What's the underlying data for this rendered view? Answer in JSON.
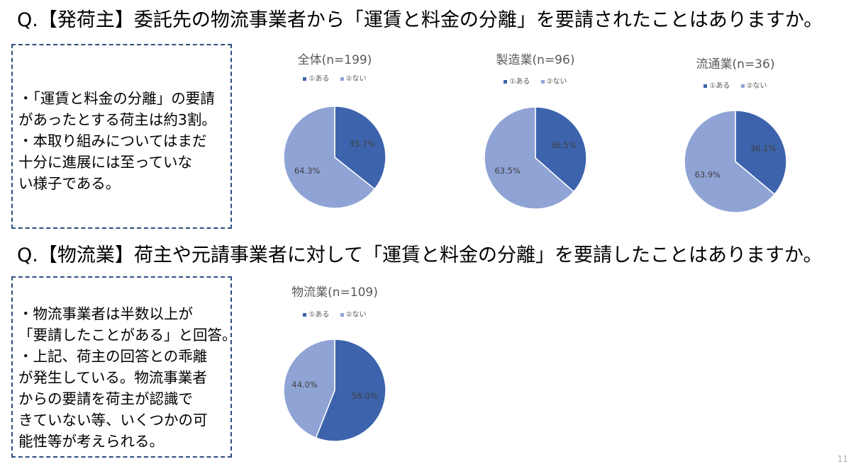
{
  "questions": [
    {
      "title": "Q.【発荷主】委託先の物流事業者から「運賃と料金の分離」を要請されたことはありますか。",
      "note_lines": [
        "・「運賃と料金の分離」の要請",
        "があったとする荷主は約3割。",
        "・本取り組みについてはまだ",
        "十分に進展には至っていな",
        "い様子である。"
      ]
    },
    {
      "title": "Q.【物流業】荷主や元請事業者に対して「運賃と料金の分離」を要請したことはありますか。",
      "note_lines": [
        "・物流事業者は半数以上が",
        "「要請したことがある」と回答。",
        "・上記、荷主の回答との乖離",
        "が発生している。物流事業者",
        "からの要請を荷主が認識で",
        "きていない等、いくつかの可",
        "能性等が考えられる。"
      ]
    }
  ],
  "colors": {
    "yes": "#3d63ac",
    "no": "#8fa3d5"
  },
  "chart_data": [
    {
      "type": "pie",
      "title": "全体(n=199)",
      "categories": [
        "①ある",
        "②ない"
      ],
      "values": [
        35.7,
        64.3
      ],
      "labels": [
        "35.7%",
        "64.3%"
      ],
      "legend": "top"
    },
    {
      "type": "pie",
      "title": "製造業(n=96)",
      "categories": [
        "①ある",
        "②ない"
      ],
      "values": [
        36.5,
        63.5
      ],
      "labels": [
        "36.5%",
        "63.5%"
      ],
      "legend": "top"
    },
    {
      "type": "pie",
      "title": "流通業(n=36)",
      "categories": [
        "①ある",
        "②ない"
      ],
      "values": [
        36.1,
        63.9
      ],
      "labels": [
        "36.1%",
        "63.9%"
      ],
      "legend": "top"
    },
    {
      "type": "pie",
      "title": "物流業(n=109)",
      "categories": [
        "①ある",
        "②ない"
      ],
      "values": [
        56.0,
        44.0
      ],
      "labels": [
        "56.0%",
        "44.0%"
      ],
      "legend": "top"
    }
  ],
  "page_number": "11"
}
